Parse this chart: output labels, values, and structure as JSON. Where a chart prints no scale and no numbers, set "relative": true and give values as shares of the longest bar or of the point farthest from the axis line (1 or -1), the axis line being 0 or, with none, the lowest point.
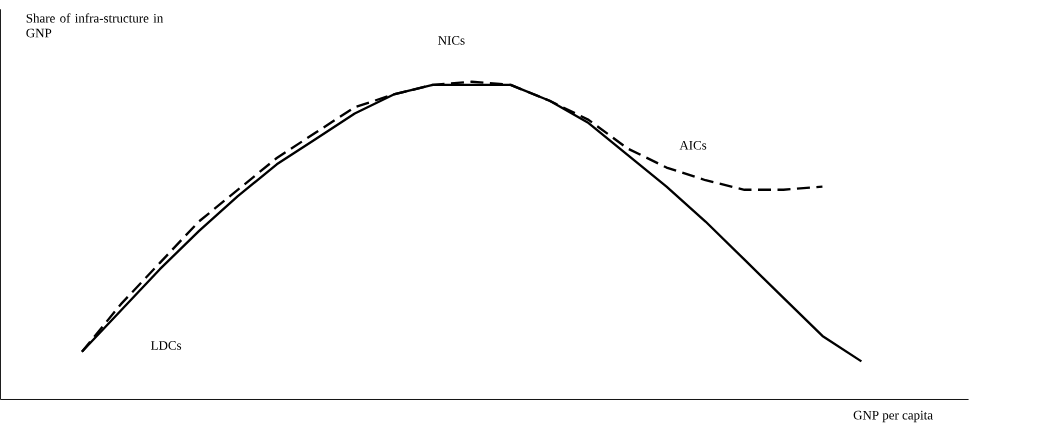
{
  "chart_data": {
    "type": "line",
    "relative": true,
    "xlabel": "GNP per capita",
    "ylabel": "Share of infra-structure in GNP",
    "categories": [
      null,
      null,
      null,
      null,
      null,
      null,
      null,
      null,
      null,
      null,
      null,
      null,
      null,
      null,
      null,
      null,
      null,
      null,
      null,
      null,
      null
    ],
    "series": [
      {
        "color": "#000000",
        "line_style": "solid",
        "values": [
          0.15,
          0.28,
          0.41,
          0.53,
          0.64,
          0.74,
          0.82,
          0.9,
          0.96,
          0.99,
          0.99,
          0.99,
          0.94,
          0.87,
          0.77,
          0.67,
          0.56,
          0.44,
          0.32,
          0.2,
          0.12
        ]
      },
      {
        "color": "#000000",
        "line_style": "dashed",
        "values": [
          0.15,
          0.3,
          0.43,
          0.56,
          0.66,
          0.76,
          0.84,
          0.92,
          0.96,
          0.99,
          1.0,
          0.99,
          0.94,
          0.88,
          0.79,
          0.73,
          0.69,
          0.66,
          0.66,
          0.67,
          null
        ]
      }
    ],
    "annotations": [
      "LDCs",
      "NICs",
      "AICs"
    ]
  }
}
